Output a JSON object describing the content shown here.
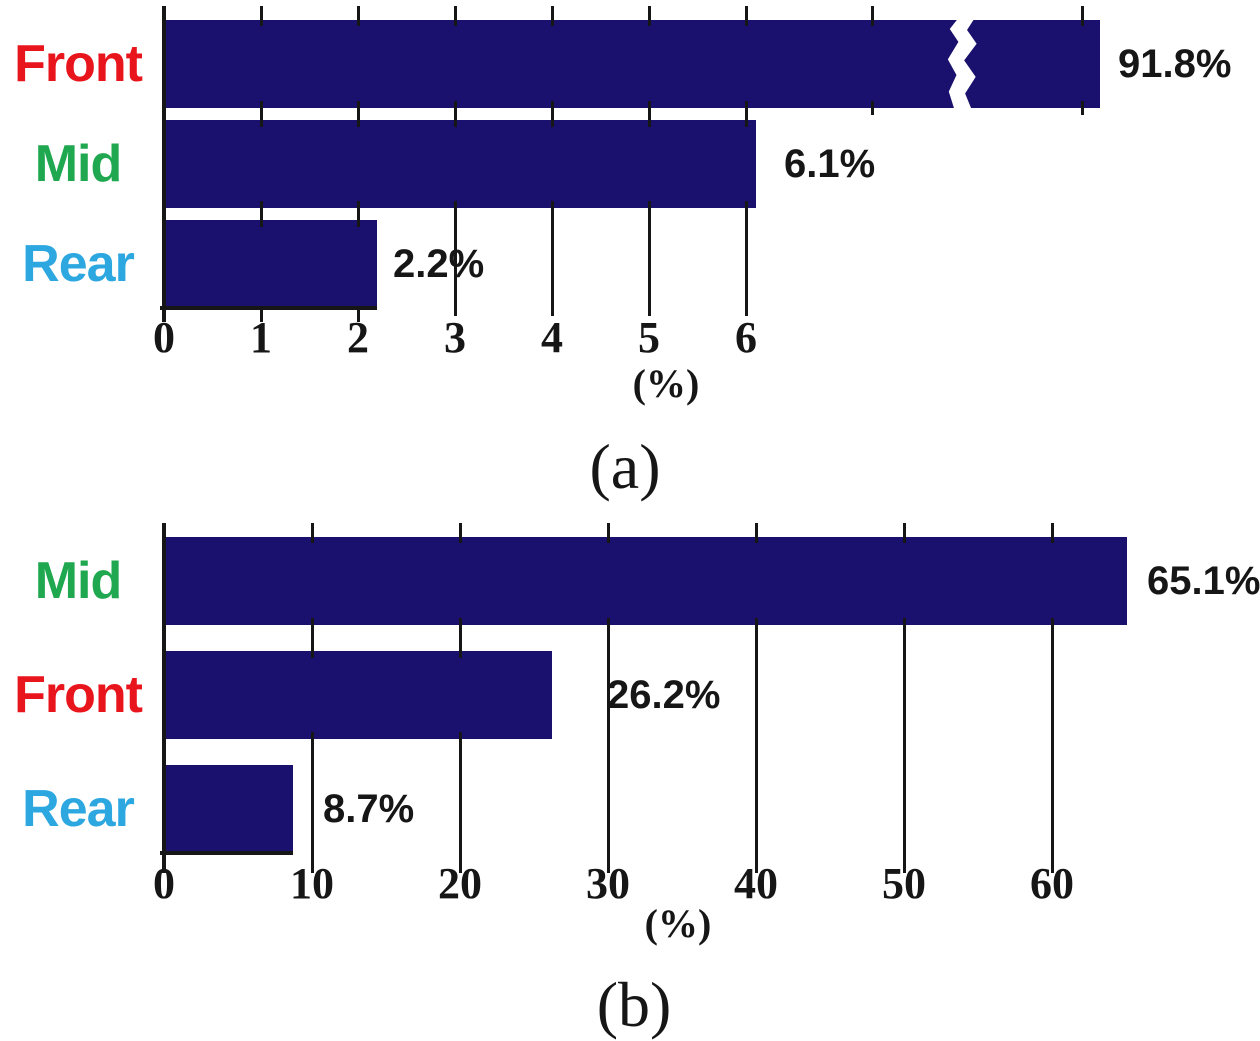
{
  "figure": {
    "background": "#ffffff",
    "grid_color": "#161616",
    "text_color": "#161616"
  },
  "chart_data": [
    {
      "type": "bar",
      "orientation": "horizontal",
      "caption": "(a)",
      "xlabel": "(%)",
      "categories": [
        "Front",
        "Mid",
        "Rear"
      ],
      "values": [
        91.8,
        6.1,
        2.2
      ],
      "value_labels": [
        "91.8%",
        "6.1%",
        "2.2%"
      ],
      "category_colors": [
        "#e8151c",
        "#1fa84f",
        "#2da7e0"
      ],
      "bar_color": "#1a116e",
      "xlim": [
        0,
        6
      ],
      "xticks": [
        0,
        1,
        2,
        3,
        4,
        5,
        6
      ],
      "grid": true,
      "legend": false,
      "axis_break": {
        "category": "Front",
        "style": "wavy-gap",
        "note": "bar value exceeds axis maximum; bar drawn with break symbol"
      }
    },
    {
      "type": "bar",
      "orientation": "horizontal",
      "caption": "(b)",
      "xlabel": "(%)",
      "categories": [
        "Mid",
        "Front",
        "Rear"
      ],
      "values": [
        65.1,
        26.2,
        8.7
      ],
      "value_labels": [
        "65.1%",
        "26.2%",
        "8.7%"
      ],
      "category_colors": [
        "#1fa84f",
        "#e8151c",
        "#2da7e0"
      ],
      "bar_color": "#1a116e",
      "xlim": [
        0,
        60
      ],
      "xticks": [
        0,
        10,
        20,
        30,
        40,
        50,
        60
      ],
      "grid": true,
      "legend": false,
      "axis_break": null
    }
  ]
}
